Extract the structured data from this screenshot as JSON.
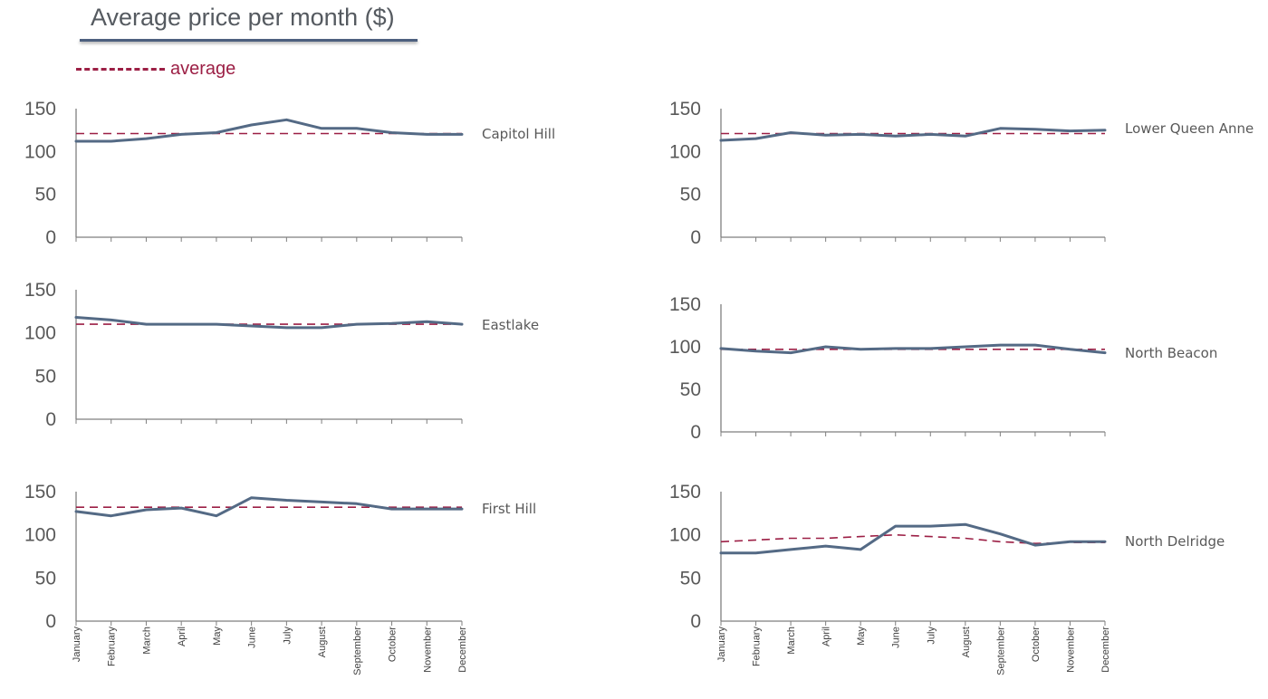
{
  "title": "Average price per month ($)",
  "legend": {
    "label": "average",
    "color": "#9c1f45"
  },
  "chart_data": {
    "type": "line",
    "months": [
      "January",
      "February",
      "March",
      "April",
      "May",
      "June",
      "July",
      "August",
      "September",
      "October",
      "November",
      "December"
    ],
    "y_ticks": [
      "0",
      "50",
      "100",
      "150"
    ],
    "ylim": [
      0,
      150
    ],
    "series_color": "#546a85",
    "average_color": "#9c1f45",
    "panels": [
      {
        "name": "Capitol Hill",
        "values": [
          112,
          112,
          115,
          120,
          122,
          131,
          137,
          127,
          127,
          122,
          120,
          120
        ],
        "average": [
          121,
          121,
          121,
          121,
          121,
          121,
          121,
          121,
          121,
          121,
          121,
          121
        ]
      },
      {
        "name": "Eastlake",
        "values": [
          118,
          115,
          110,
          110,
          110,
          108,
          106,
          106,
          110,
          111,
          113,
          110
        ],
        "average": [
          110,
          110,
          110,
          110,
          110,
          110,
          110,
          110,
          110,
          110,
          110,
          110
        ]
      },
      {
        "name": "First Hill",
        "values": [
          127,
          122,
          129,
          131,
          122,
          143,
          140,
          138,
          136,
          130,
          130,
          130
        ],
        "average": [
          132,
          132,
          132,
          132,
          132,
          132,
          132,
          132,
          132,
          132,
          132,
          132
        ]
      },
      {
        "name": "Lower Queen Anne",
        "values": [
          113,
          115,
          122,
          119,
          120,
          118,
          120,
          118,
          127,
          126,
          124,
          125
        ],
        "average": [
          121,
          121,
          121,
          121,
          121,
          121,
          121,
          121,
          121,
          121,
          121,
          121
        ]
      },
      {
        "name": "North Beacon",
        "values": [
          98,
          95,
          93,
          100,
          97,
          98,
          98,
          100,
          102,
          102,
          97,
          93
        ],
        "average": [
          97,
          97,
          97,
          97,
          97,
          97,
          97,
          97,
          97,
          97,
          97,
          97
        ]
      },
      {
        "name": "North Delridge",
        "values": [
          79,
          79,
          83,
          87,
          83,
          110,
          110,
          112,
          101,
          88,
          92,
          92
        ],
        "average": [
          92,
          94,
          96,
          96,
          98,
          100,
          98,
          96,
          92,
          90,
          91,
          91
        ]
      }
    ]
  }
}
